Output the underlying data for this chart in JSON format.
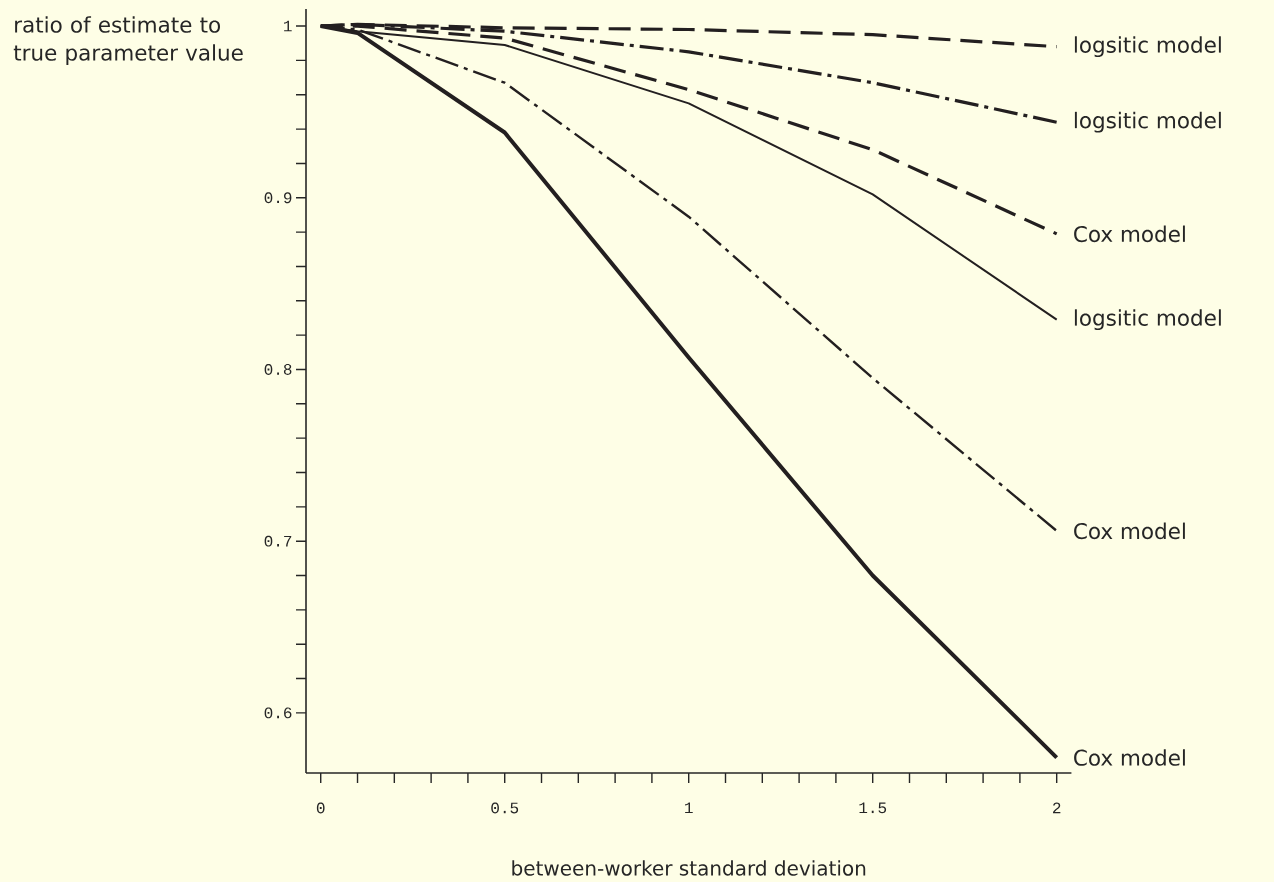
{
  "chart_data": {
    "type": "line",
    "xlabel": "between-worker standard deviation",
    "ylabel": "ratio of estimate to true parameter value",
    "x": [
      0,
      0.1,
      0.5,
      1,
      1.5,
      2
    ],
    "xlim": [
      -0.04,
      2.04
    ],
    "ylim": [
      0.565,
      1.01
    ],
    "xticks": [
      0,
      0.5,
      1,
      1.5,
      2
    ],
    "yticks": [
      0.6,
      0.7,
      0.8,
      0.9,
      1
    ],
    "series": [
      {
        "name": "logsitic model",
        "color": "#231f20",
        "line_style": "dashed",
        "values": [
          1,
          1.001,
          0.999,
          0.998,
          0.995,
          0.988
        ]
      },
      {
        "name": "logsitic model",
        "color": "#231f20",
        "line_style": "dashdot",
        "values": [
          1,
          1.001,
          0.997,
          0.985,
          0.967,
          0.944
        ]
      },
      {
        "name": "Cox model",
        "color": "#231f20",
        "line_style": "dashed",
        "values": [
          1,
          1.0,
          0.993,
          0.963,
          0.928,
          0.879
        ]
      },
      {
        "name": "logsitic model",
        "color": "#231f20",
        "line_style": "solid",
        "values": [
          1,
          0.997,
          0.989,
          0.955,
          0.902,
          0.829
        ]
      },
      {
        "name": "Cox model",
        "color": "#231f20",
        "line_style": "dashdot",
        "values": [
          1,
          0.998,
          0.967,
          0.889,
          0.795,
          0.706
        ]
      },
      {
        "name": "Cox model",
        "color": "#231f20",
        "line_style": "solid",
        "values": [
          1,
          0.996,
          0.938,
          0.807,
          0.68,
          0.574
        ]
      }
    ]
  }
}
